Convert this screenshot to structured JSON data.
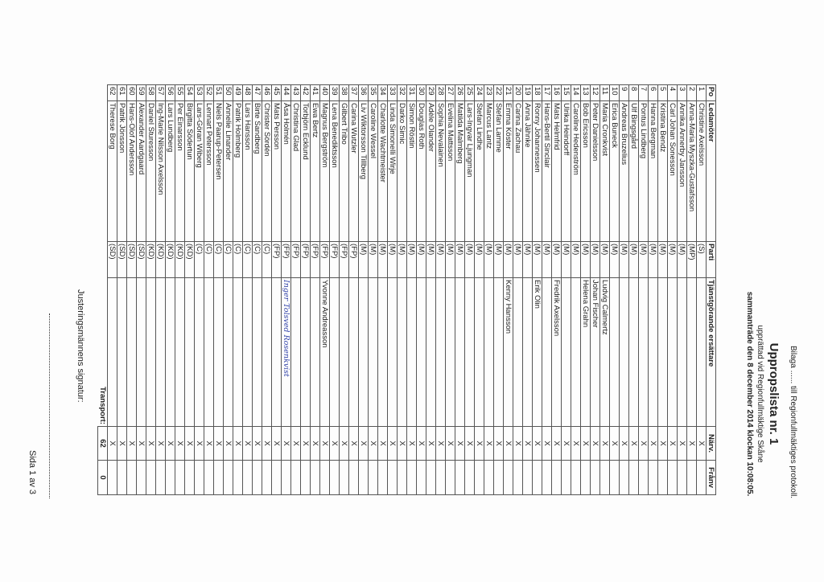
{
  "header": {
    "annex": "Bilaga ...... till Regionfullmäktiges protokoll.",
    "title": "Uppropslista nr. 1",
    "subtitle": "upprättad vid Regionfullmäktige Skåne",
    "meeting": "sammanträde den 8 december 2014 klockan 10:08:05."
  },
  "table": {
    "columns": [
      "Po",
      "Ledamöter",
      "Parti",
      "Tjänstgörande ersättare",
      "Närv.",
      "Frånv"
    ],
    "rows": [
      {
        "po": "1",
        "name": "Christine Axelsson",
        "party": "(S)",
        "present": "X"
      },
      {
        "po": "2",
        "name": "Anna-Maria Myszka-Gustafsson",
        "party": "(MP)",
        "present": "X"
      },
      {
        "po": "3",
        "name": "Annika Annerby Jansson",
        "party": "(M)",
        "present": "X"
      },
      {
        "po": "4",
        "name": "Carl Johan Sonesson",
        "party": "(M)",
        "present": "X"
      },
      {
        "po": "5",
        "name": "Kristina Bendz",
        "party": "(M)",
        "present": "X"
      },
      {
        "po": "6",
        "name": "Hanna Bergman",
        "party": "(M)",
        "present": "X"
      },
      {
        "po": "7",
        "name": "Pontus Lindberg",
        "party": "(M)",
        "present": "X"
      },
      {
        "po": "8",
        "name": "Ulf Bingsgård",
        "party": "(M)",
        "present": "X"
      },
      {
        "po": "9",
        "name": "Andreas Bruzelius",
        "party": "(M)",
        "present": "X"
      },
      {
        "po": "10",
        "name": "Erica Buneck",
        "party": "(M)",
        "present": "X"
      },
      {
        "po": "11",
        "name": "Maria Cronkvist",
        "party": "(M)",
        "substitute": "Ludvig Calmertz",
        "present": "X"
      },
      {
        "po": "12",
        "name": "Peter Danielsson",
        "party": "(M)",
        "substitute": "Johan Fischer",
        "present": "X"
      },
      {
        "po": "13",
        "name": "Bob Ericsson",
        "party": "(M)",
        "substitute": "Helena Grahn",
        "present": "X"
      },
      {
        "po": "14",
        "name": "Caroline Hedenström",
        "party": "(M)",
        "present": "X"
      },
      {
        "po": "15",
        "name": "Ulrika Heindorff",
        "party": "(M)",
        "present": "X"
      },
      {
        "po": "16",
        "name": "Mats Helmfrid",
        "party": "(M)",
        "substitute": "Fredrik Axelsson",
        "present": "X"
      },
      {
        "po": "17",
        "name": "Hans-Bertil Sinclair",
        "party": "(M)",
        "present": "X"
      },
      {
        "po": "18",
        "name": "Ronny Johannessen",
        "party": "(M)",
        "substitute": "Erik Olin",
        "present": "X"
      },
      {
        "po": "19",
        "name": "Anna Jähnke",
        "party": "(M)",
        "present": "X"
      },
      {
        "po": "20",
        "name": "Carina Zachau",
        "party": "(M)",
        "present": "X"
      },
      {
        "po": "21",
        "name": "Emma Köster",
        "party": "(M)",
        "substitute": "Kenny Hansson",
        "present": "X"
      },
      {
        "po": "22",
        "name": "Stefan Lamme",
        "party": "(M)",
        "present": "X"
      },
      {
        "po": "23",
        "name": "Marcus Lantz",
        "party": "(M)",
        "present": "X"
      },
      {
        "po": "24",
        "name": "Stefan Lindhe",
        "party": "(M)",
        "present": "X"
      },
      {
        "po": "25",
        "name": "Lars-Ingvar Ljungman",
        "party": "(M)",
        "present": "X"
      },
      {
        "po": "26",
        "name": "Matilda Malmberg",
        "party": "(M)",
        "present": "X"
      },
      {
        "po": "27",
        "name": "Evelina Mattsson",
        "party": "(M)",
        "present": "X"
      },
      {
        "po": "28",
        "name": "Sophia Nevalainen",
        "party": "(M)",
        "present": "X"
      },
      {
        "po": "29",
        "name": "Adèle Olander",
        "party": "(M)",
        "present": "X"
      },
      {
        "po": "30",
        "name": "Douglas Roth",
        "party": "(M)",
        "present": "X"
      },
      {
        "po": "31",
        "name": "Simon Röstin",
        "party": "(M)",
        "present": "X"
      },
      {
        "po": "32",
        "name": "Darko Simic",
        "party": "(M)",
        "present": "X"
      },
      {
        "po": "33",
        "name": "Linda Simonelli Wirje",
        "party": "(M)",
        "present": "X"
      },
      {
        "po": "34",
        "name": "Charlotte Wachtmeister",
        "party": "(M)",
        "present": "X"
      },
      {
        "po": "35",
        "name": "Caroline Wessel",
        "party": "(M)",
        "present": "X"
      },
      {
        "po": "36",
        "name": "Liv Wiktorsson Tillberg",
        "party": "(M)",
        "present": "X"
      },
      {
        "po": "37",
        "name": "Carina Wutzler",
        "party": "(FP)",
        "present": "X"
      },
      {
        "po": "38",
        "name": "Gilbert Tribo",
        "party": "(FP)",
        "present": "X"
      },
      {
        "po": "39",
        "name": "Lena Benediktsson",
        "party": "(FP)",
        "present": "X"
      },
      {
        "po": "40",
        "name": "Magnus Bergström",
        "party": "(FP)",
        "substitute": "Yvonne Andreasson",
        "present": "X"
      },
      {
        "po": "41",
        "name": "Ewa Bertz",
        "party": "(FP)",
        "present": "X"
      },
      {
        "po": "42",
        "name": "Torbjörn Ecklund",
        "party": "(FP)",
        "present": "X"
      },
      {
        "po": "43",
        "name": "Christina Glad",
        "party": "(FP)",
        "present": "X"
      },
      {
        "po": "44",
        "name": "Åsa Holmén",
        "party": "(FP)",
        "substitute": "Inger Tolsved Rosenkvist",
        "present": "X"
      },
      {
        "po": "45",
        "name": "Mats Persson",
        "party": "(FP)",
        "present": "X"
      },
      {
        "po": "46",
        "name": "Christer Sördén",
        "party": "(C)",
        "present": "X"
      },
      {
        "po": "47",
        "name": "Birte Sandberg",
        "party": "(C)",
        "present": "X"
      },
      {
        "po": "48",
        "name": "Lars Hansson",
        "party": "(C)",
        "present": "X"
      },
      {
        "po": "49",
        "name": "Patrik Holmberg",
        "party": "(C)",
        "present": "X"
      },
      {
        "po": "50",
        "name": "Annelie Linander",
        "party": "(C)",
        "present": "X"
      },
      {
        "po": "51",
        "name": "Niels Paarup-Petersen",
        "party": "(C)",
        "present": "X"
      },
      {
        "po": "52",
        "name": "Lennart Petersson",
        "party": "(C)",
        "present": "X"
      },
      {
        "po": "53",
        "name": "Lars-Göran Wiberg",
        "party": "(C)",
        "present": "X"
      },
      {
        "po": "54",
        "name": "Birgitta Södertun",
        "party": "(KD)",
        "present": "X"
      },
      {
        "po": "55",
        "name": "Per Einarsson",
        "party": "(KD)",
        "present": "X"
      },
      {
        "po": "56",
        "name": "Lars Lundberg",
        "party": "(KD)",
        "present": "X"
      },
      {
        "po": "57",
        "name": "Ing-Marie Nilsson Axelsson",
        "party": "(KD)",
        "present": "X"
      },
      {
        "po": "58",
        "name": "Daniel Sturesson",
        "party": "(KD)",
        "present": "X"
      },
      {
        "po": "59",
        "name": "Alexander Aardgaard",
        "party": "(SD)",
        "present": "X"
      },
      {
        "po": "60",
        "name": "Hans-Olof Andersson",
        "party": "(SD)",
        "present": "X"
      },
      {
        "po": "61",
        "name": "Patrik Jönsson",
        "party": "(SD)",
        "present": "X"
      },
      {
        "po": "62",
        "name": "Therese Borg",
        "party": "(SD)",
        "present": "X"
      }
    ],
    "transport": {
      "label": "Transport:",
      "present": "62",
      "absent": "0"
    }
  },
  "footer": {
    "signature_label": "Justeringsmännens signatur:",
    "page": "Sida 1 av 3"
  }
}
